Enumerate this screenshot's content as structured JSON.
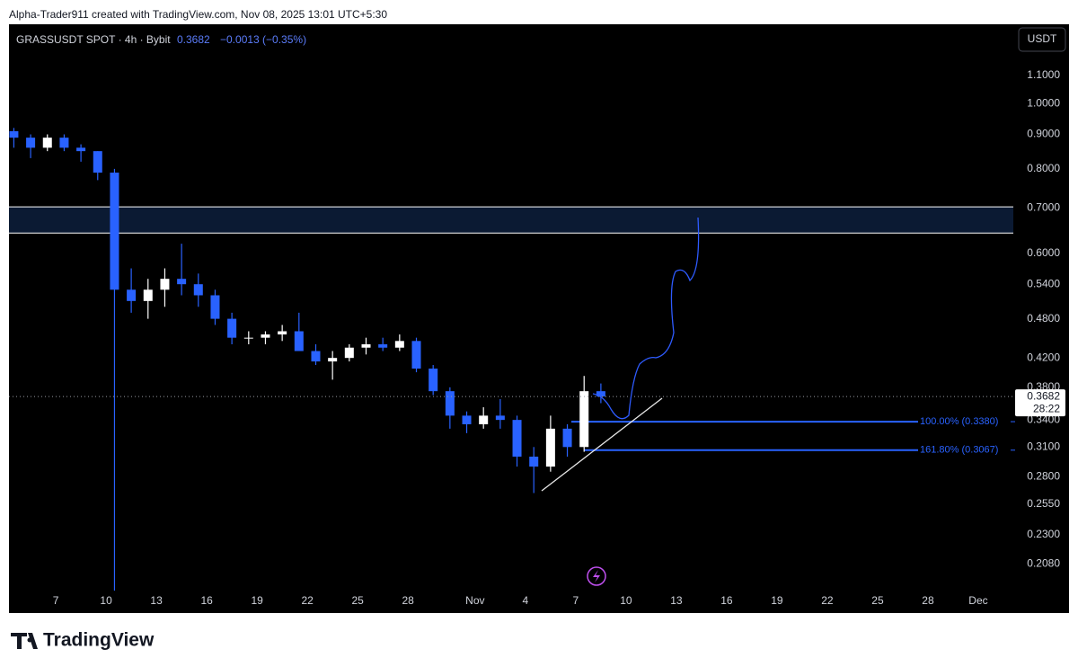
{
  "header": {
    "credit": "Alpha-Trader911 created with TradingView.com, Nov 08, 2025 13:01 UTC+5:30"
  },
  "footer": {
    "brand": "TradingView"
  },
  "chart_data": {
    "type": "candlestick",
    "title": "GRASSUSDT SPOT · 4h · Bybit",
    "last_price": 0.3682,
    "change_label": "−0.0013 (−0.35%)",
    "currency": "USDT",
    "countdown": "28:22",
    "log_scale": true,
    "up_color": "#ffffff",
    "down_color": "#2962ff",
    "x": [
      3.5,
      4.5,
      5.5,
      6.5,
      7.5,
      8.5,
      9.5,
      10.5,
      11.5,
      12.5,
      13.5,
      14.5,
      15.5,
      16.5,
      17.5,
      18.5,
      19.5,
      20.5,
      21.5,
      22.5,
      23.5,
      24.5,
      25.5,
      26.5,
      27.5,
      28.5,
      29.5,
      30.5,
      31.5,
      32.5,
      33.5,
      34.5,
      35.5,
      36.5,
      37.5,
      38.5
    ],
    "open": [
      0.91,
      0.89,
      0.86,
      0.89,
      0.86,
      0.85,
      0.79,
      0.53,
      0.51,
      0.53,
      0.55,
      0.54,
      0.52,
      0.48,
      0.45,
      0.45,
      0.455,
      0.46,
      0.43,
      0.415,
      0.42,
      0.435,
      0.44,
      0.435,
      0.445,
      0.405,
      0.375,
      0.345,
      0.335,
      0.345,
      0.34,
      0.3,
      0.29,
      0.33,
      0.31,
      0.375
    ],
    "high": [
      0.92,
      0.9,
      0.9,
      0.9,
      0.87,
      0.85,
      0.8,
      0.57,
      0.55,
      0.57,
      0.62,
      0.56,
      0.53,
      0.49,
      0.46,
      0.46,
      0.47,
      0.49,
      0.44,
      0.43,
      0.44,
      0.45,
      0.45,
      0.455,
      0.45,
      0.41,
      0.38,
      0.35,
      0.355,
      0.365,
      0.345,
      0.31,
      0.345,
      0.335,
      0.395,
      0.385
    ],
    "low": [
      0.86,
      0.83,
      0.85,
      0.85,
      0.82,
      0.77,
      0.19,
      0.49,
      0.48,
      0.5,
      0.52,
      0.5,
      0.47,
      0.44,
      0.44,
      0.44,
      0.445,
      0.43,
      0.41,
      0.39,
      0.415,
      0.425,
      0.43,
      0.43,
      0.4,
      0.37,
      0.33,
      0.325,
      0.33,
      0.33,
      0.29,
      0.265,
      0.285,
      0.3,
      0.305,
      0.36
    ],
    "close": [
      0.89,
      0.86,
      0.89,
      0.86,
      0.85,
      0.79,
      0.53,
      0.51,
      0.53,
      0.55,
      0.54,
      0.52,
      0.48,
      0.45,
      0.45,
      0.455,
      0.46,
      0.43,
      0.415,
      0.42,
      0.435,
      0.44,
      0.435,
      0.445,
      0.405,
      0.375,
      0.345,
      0.335,
      0.345,
      0.34,
      0.3,
      0.29,
      0.33,
      0.31,
      0.375,
      0.3682
    ],
    "zone": [
      0.643,
      0.703
    ],
    "fib_levels": [
      {
        "value": 0.338,
        "label": "100.00% (0.3380)"
      },
      {
        "value": 0.3067,
        "label": "161.80% (0.3067)"
      }
    ],
    "xlim": [
      3.21,
      63.09
    ],
    "xticks": [
      {
        "value": 6,
        "label": "7"
      },
      {
        "value": 9,
        "label": "10"
      },
      {
        "value": 12,
        "label": "13"
      },
      {
        "value": 15,
        "label": "16"
      },
      {
        "value": 18,
        "label": "19"
      },
      {
        "value": 21,
        "label": "22"
      },
      {
        "value": 24,
        "label": "25"
      },
      {
        "value": 27,
        "label": "28"
      },
      {
        "value": 31,
        "label": "Nov"
      },
      {
        "value": 34,
        "label": "4"
      },
      {
        "value": 37,
        "label": "7"
      },
      {
        "value": 40,
        "label": "10"
      },
      {
        "value": 43,
        "label": "13"
      },
      {
        "value": 46,
        "label": "16"
      },
      {
        "value": 49,
        "label": "19"
      },
      {
        "value": 52,
        "label": "22"
      },
      {
        "value": 55,
        "label": "25"
      },
      {
        "value": 58,
        "label": "28"
      },
      {
        "value": 61,
        "label": "Dec"
      }
    ],
    "ylim": [
      0.176,
      1.31
    ],
    "yticks": [
      {
        "value": 1.1,
        "label": "1.1000"
      },
      {
        "value": 1.0,
        "label": "1.0000"
      },
      {
        "value": 0.9,
        "label": "0.9000"
      },
      {
        "value": 0.8,
        "label": "0.8000"
      },
      {
        "value": 0.7,
        "label": "0.7000"
      },
      {
        "value": 0.6,
        "label": "0.6000"
      },
      {
        "value": 0.54,
        "label": "0.5400"
      },
      {
        "value": 0.48,
        "label": "0.4800"
      },
      {
        "value": 0.42,
        "label": "0.4200"
      },
      {
        "value": 0.38,
        "label": "0.3800"
      },
      {
        "value": 0.34,
        "label": "0.3400"
      },
      {
        "value": 0.31,
        "label": "0.3100"
      },
      {
        "value": 0.28,
        "label": "0.2800"
      },
      {
        "value": 0.255,
        "label": "0.2550"
      },
      {
        "value": 0.23,
        "label": "0.2300"
      },
      {
        "value": 0.208,
        "label": "0.2080"
      }
    ]
  }
}
